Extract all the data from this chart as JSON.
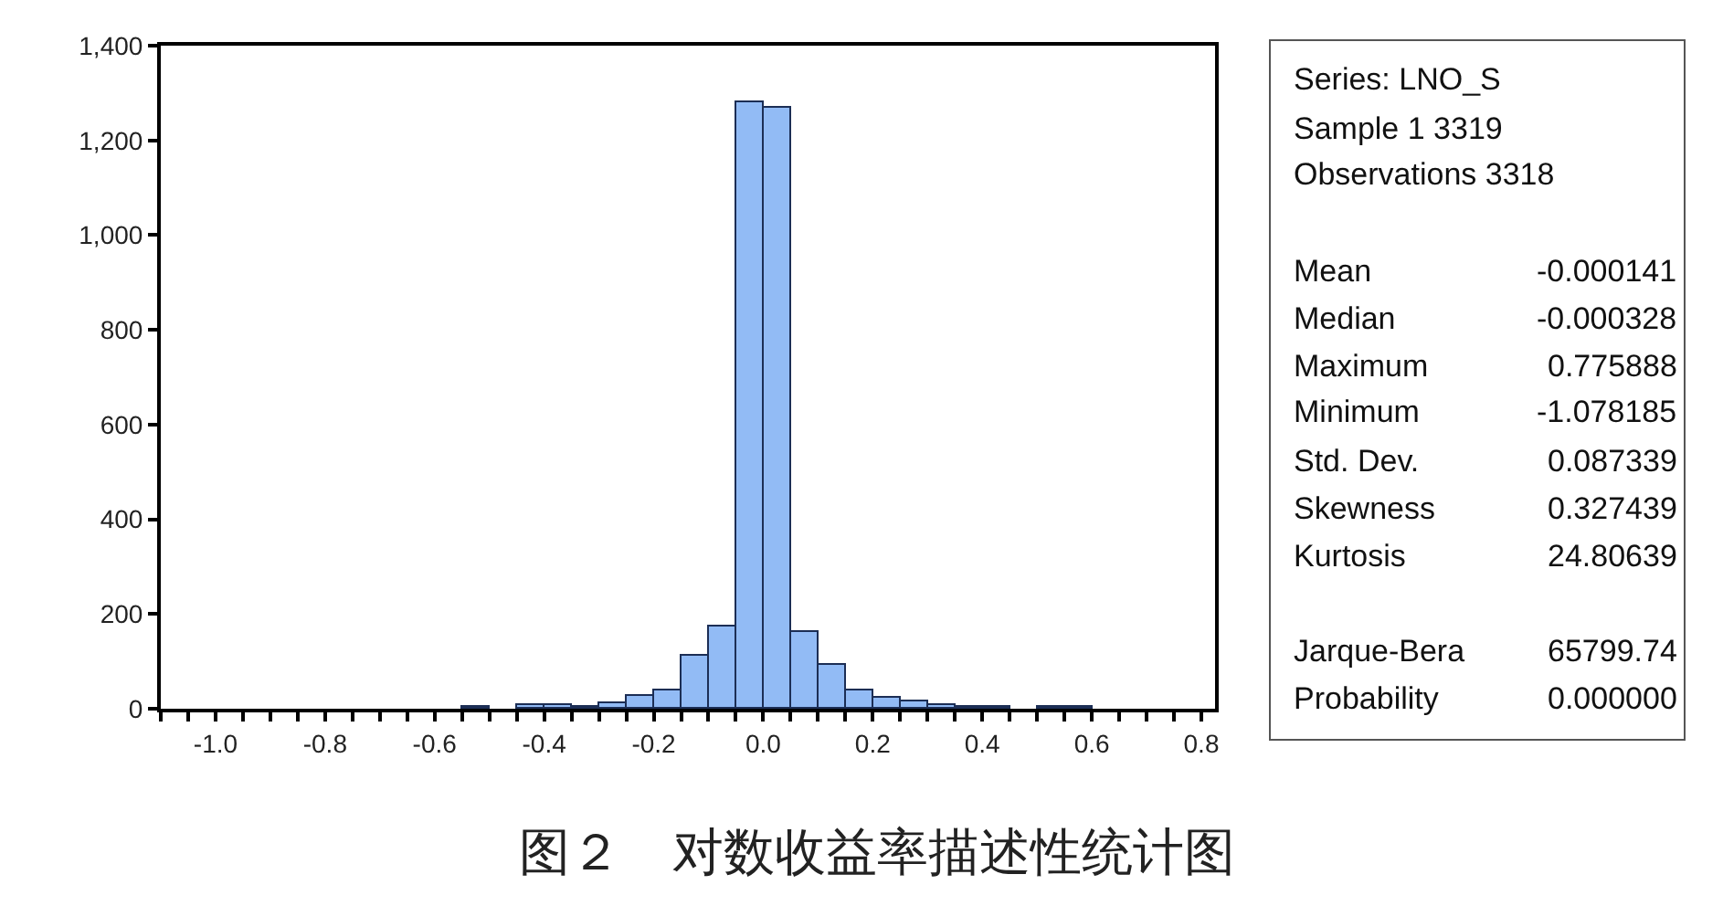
{
  "chart_data": {
    "type": "histogram",
    "title": "图２　对数收益率描述性统计图",
    "bins": [
      -1.1,
      -1.05,
      -1.0,
      -0.95,
      -0.9,
      -0.85,
      -0.8,
      -0.75,
      -0.7,
      -0.65,
      -0.6,
      -0.55,
      -0.5,
      -0.45,
      -0.4,
      -0.35,
      -0.3,
      -0.25,
      -0.2,
      -0.15,
      -0.1,
      -0.05,
      0.0,
      0.05,
      0.1,
      0.15,
      0.2,
      0.25,
      0.3,
      0.35,
      0.4,
      0.45,
      0.5,
      0.55,
      0.6,
      0.65,
      0.7,
      0.75,
      0.8
    ],
    "values": [
      0,
      0,
      0,
      0,
      0,
      0,
      0,
      0,
      0,
      0,
      0,
      3,
      0,
      7,
      7,
      2,
      10,
      27,
      37,
      112,
      174,
      1280,
      1270,
      161,
      94,
      37,
      24,
      14,
      6,
      5,
      2,
      0,
      2,
      2,
      0,
      0,
      0,
      0
    ],
    "color": "#92bbf5",
    "xlim": [
      -1.1,
      0.825
    ],
    "xticks": [
      {
        "value": -1.1,
        "label": null
      },
      {
        "value": -1.05,
        "label": null
      },
      {
        "value": -1.0,
        "label": "-1.0"
      },
      {
        "value": -0.95,
        "label": null
      },
      {
        "value": -0.9,
        "label": null
      },
      {
        "value": -0.85,
        "label": null
      },
      {
        "value": -0.8,
        "label": "-0.8"
      },
      {
        "value": -0.75,
        "label": null
      },
      {
        "value": -0.7,
        "label": null
      },
      {
        "value": -0.65,
        "label": null
      },
      {
        "value": -0.6,
        "label": "-0.6"
      },
      {
        "value": -0.55,
        "label": null
      },
      {
        "value": -0.5,
        "label": null
      },
      {
        "value": -0.45,
        "label": null
      },
      {
        "value": -0.4,
        "label": "-0.4"
      },
      {
        "value": -0.35,
        "label": null
      },
      {
        "value": -0.3,
        "label": null
      },
      {
        "value": -0.25,
        "label": null
      },
      {
        "value": -0.2,
        "label": "-0.2"
      },
      {
        "value": -0.15,
        "label": null
      },
      {
        "value": -0.1,
        "label": null
      },
      {
        "value": -0.05,
        "label": null
      },
      {
        "value": 0.0,
        "label": "0.0"
      },
      {
        "value": 0.05,
        "label": null
      },
      {
        "value": 0.1,
        "label": null
      },
      {
        "value": 0.15,
        "label": null
      },
      {
        "value": 0.2,
        "label": "0.2"
      },
      {
        "value": 0.25,
        "label": null
      },
      {
        "value": 0.3,
        "label": null
      },
      {
        "value": 0.35,
        "label": null
      },
      {
        "value": 0.4,
        "label": "0.4"
      },
      {
        "value": 0.45,
        "label": null
      },
      {
        "value": 0.5,
        "label": null
      },
      {
        "value": 0.55,
        "label": null
      },
      {
        "value": 0.6,
        "label": "0.6"
      },
      {
        "value": 0.65,
        "label": null
      },
      {
        "value": 0.7,
        "label": null
      },
      {
        "value": 0.75,
        "label": null
      },
      {
        "value": 0.8,
        "label": "0.8"
      }
    ],
    "ylim": [
      0,
      1400
    ],
    "yticks": [
      {
        "value": 0,
        "label": "0"
      },
      {
        "value": 200,
        "label": "200"
      },
      {
        "value": 400,
        "label": "400"
      },
      {
        "value": 600,
        "label": "600"
      },
      {
        "value": 800,
        "label": "800"
      },
      {
        "value": 1000,
        "label": "1,000"
      },
      {
        "value": 1200,
        "label": "1,200"
      },
      {
        "value": 1400,
        "label": "1,400"
      }
    ],
    "annotations": [
      "Series: LNO_S",
      "Sample 1 3319",
      "Observations 3318",
      "Mean",
      "-0.000141",
      "Median",
      "-0.000328",
      "Maximum",
      "0.775888",
      "Minimum",
      "-1.078185",
      "Std. Dev.",
      "0.087339",
      "Skewness",
      "0.327439",
      "Kurtosis",
      "24.80639",
      "Jarque-Bera",
      "65799.74",
      "Probability",
      "0.000000"
    ]
  }
}
